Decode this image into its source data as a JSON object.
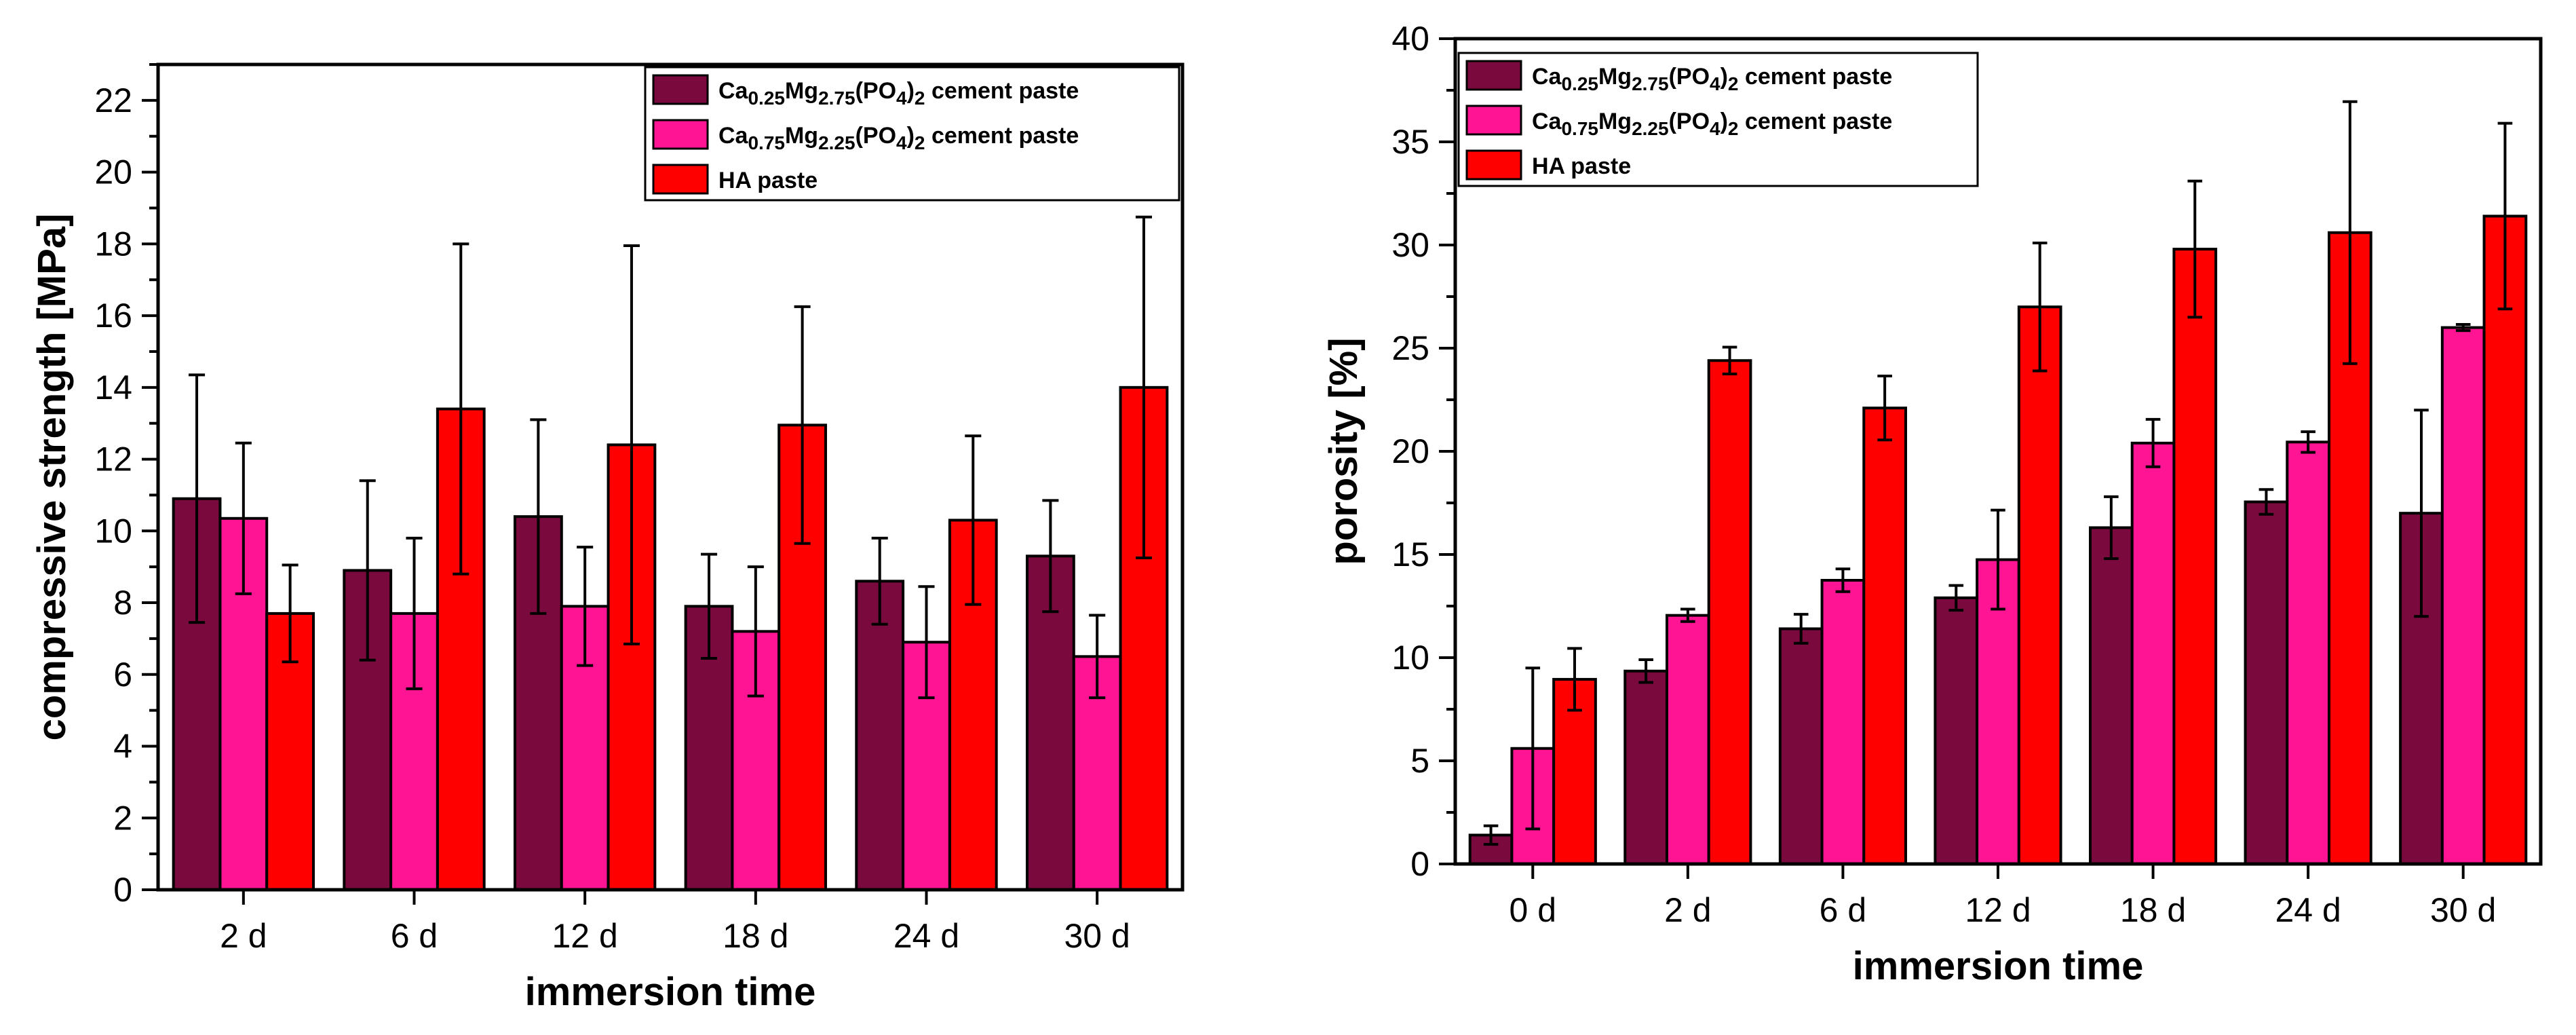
{
  "chart_data": [
    {
      "type": "bar",
      "xlabel": "immersion time",
      "ylabel": "compressive strength [MPa]",
      "ylim": [
        0,
        23
      ],
      "yticks": [
        0,
        2,
        4,
        6,
        8,
        10,
        12,
        14,
        16,
        18,
        20,
        22
      ],
      "grid": false,
      "legend_position": "top-right",
      "categories": [
        "2 d",
        "6 d",
        "12 d",
        "18 d",
        "24 d",
        "30 d"
      ],
      "series": [
        {
          "name": "Ca0.25Mg2.75(PO4)2 cement paste",
          "label_parts": [
            [
              "Ca",
              ""
            ],
            [
              "0.25",
              "sub"
            ],
            [
              "Mg",
              ""
            ],
            [
              "2.75",
              "sub"
            ],
            [
              "(PO",
              ""
            ],
            [
              "4",
              "sub"
            ],
            [
              ")",
              ""
            ],
            [
              "2",
              "sub"
            ],
            [
              " cement paste",
              ""
            ]
          ],
          "color": "#7a0a3e",
          "values": [
            10.9,
            8.9,
            10.4,
            7.9,
            8.6,
            9.3
          ],
          "errors": [
            3.45,
            2.5,
            2.7,
            1.45,
            1.2,
            1.55
          ]
        },
        {
          "name": "Ca0.75Mg2.25(PO4)2 cement paste",
          "label_parts": [
            [
              "Ca",
              ""
            ],
            [
              "0.75",
              "sub"
            ],
            [
              "Mg",
              ""
            ],
            [
              "2.25",
              "sub"
            ],
            [
              "(PO",
              ""
            ],
            [
              "4",
              "sub"
            ],
            [
              ")",
              ""
            ],
            [
              "2",
              "sub"
            ],
            [
              " cement paste",
              ""
            ]
          ],
          "color": "#ff1493",
          "values": [
            10.35,
            7.7,
            7.9,
            7.2,
            6.9,
            6.5
          ],
          "errors": [
            2.1,
            2.1,
            1.65,
            1.8,
            1.55,
            1.15
          ]
        },
        {
          "name": "HA paste",
          "label_parts": [
            [
              "HA paste",
              ""
            ]
          ],
          "color": "#ff0000",
          "values": [
            7.7,
            13.4,
            12.4,
            12.95,
            10.3,
            14.0
          ],
          "errors": [
            1.35,
            4.6,
            5.55,
            3.3,
            2.35,
            4.75
          ]
        }
      ]
    },
    {
      "type": "bar",
      "xlabel": "immersion time",
      "ylabel": "porosity [%]",
      "ylim": [
        0,
        40
      ],
      "yticks": [
        0,
        5,
        10,
        15,
        20,
        25,
        30,
        35,
        40
      ],
      "grid": false,
      "legend_position": "top-left",
      "categories": [
        "0 d",
        "2 d",
        "6 d",
        "12 d",
        "18 d",
        "24 d",
        "30 d"
      ],
      "series": [
        {
          "name": "Ca0.25Mg2.75(PO4)2 cement paste",
          "label_parts": [
            [
              "Ca",
              ""
            ],
            [
              "0.25",
              "sub"
            ],
            [
              "Mg",
              ""
            ],
            [
              "2.75",
              "sub"
            ],
            [
              "(PO",
              ""
            ],
            [
              "4",
              "sub"
            ],
            [
              ")",
              ""
            ],
            [
              "2",
              "sub"
            ],
            [
              " cement paste",
              ""
            ]
          ],
          "color": "#7a0a3e",
          "values": [
            1.4,
            9.35,
            11.4,
            12.9,
            16.3,
            17.55,
            17.0
          ],
          "errors": [
            0.45,
            0.55,
            0.7,
            0.6,
            1.5,
            0.6,
            5.0
          ]
        },
        {
          "name": "Ca0.75Mg2.25(PO4)2 cement paste",
          "label_parts": [
            [
              "Ca",
              ""
            ],
            [
              "0.75",
              "sub"
            ],
            [
              "Mg",
              ""
            ],
            [
              "2.25",
              "sub"
            ],
            [
              "(PO",
              ""
            ],
            [
              "4",
              "sub"
            ],
            [
              ")",
              ""
            ],
            [
              "2",
              "sub"
            ],
            [
              " cement paste",
              ""
            ]
          ],
          "color": "#ff1493",
          "values": [
            5.6,
            12.05,
            13.75,
            14.75,
            20.4,
            20.45,
            26.0
          ],
          "errors": [
            3.9,
            0.3,
            0.55,
            2.4,
            1.15,
            0.5,
            0.15
          ]
        },
        {
          "name": "HA paste",
          "label_parts": [
            [
              "HA paste",
              ""
            ]
          ],
          "color": "#ff0000",
          "values": [
            8.95,
            24.4,
            22.1,
            27.0,
            29.8,
            30.6,
            31.4
          ],
          "errors": [
            1.5,
            0.65,
            1.55,
            3.1,
            3.3,
            6.35,
            4.5
          ]
        }
      ]
    }
  ]
}
